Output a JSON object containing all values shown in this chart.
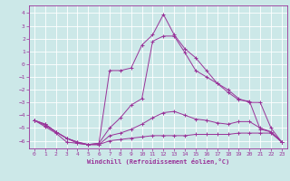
{
  "xlabel": "Windchill (Refroidissement éolien,°C)",
  "xlim": [
    -0.5,
    23.5
  ],
  "ylim": [
    -6.6,
    4.6
  ],
  "yticks": [
    4,
    3,
    2,
    1,
    0,
    -1,
    -2,
    -3,
    -4,
    -5,
    -6
  ],
  "xticks": [
    0,
    1,
    2,
    3,
    4,
    5,
    6,
    7,
    8,
    9,
    10,
    11,
    12,
    13,
    14,
    15,
    16,
    17,
    18,
    19,
    20,
    21,
    22,
    23
  ],
  "bg_color": "#cce8e8",
  "grid_color": "#ffffff",
  "line_color": "#993399",
  "line1_x": [
    0,
    1,
    2,
    3,
    4,
    5,
    6,
    7,
    8,
    9,
    10,
    11,
    12,
    13,
    14,
    15,
    16,
    17,
    18,
    19,
    20,
    21,
    22,
    23
  ],
  "line1_y": [
    -4.4,
    -4.9,
    -5.4,
    -6.1,
    -6.2,
    -6.3,
    -6.3,
    -6.0,
    -5.9,
    -5.8,
    -5.7,
    -5.6,
    -5.6,
    -5.6,
    -5.6,
    -5.5,
    -5.5,
    -5.5,
    -5.5,
    -5.4,
    -5.4,
    -5.4,
    -5.4,
    -6.1
  ],
  "line2_x": [
    0,
    1,
    2,
    3,
    4,
    5,
    6,
    7,
    8,
    9,
    10,
    11,
    12,
    13,
    14,
    15,
    16,
    17,
    18,
    19,
    20,
    21,
    22,
    23
  ],
  "line2_y": [
    -4.4,
    -4.8,
    -5.3,
    -5.8,
    -6.2,
    -6.3,
    -6.3,
    -5.6,
    -5.4,
    -5.1,
    -4.7,
    -4.2,
    -3.8,
    -3.7,
    -4.0,
    -4.3,
    -4.4,
    -4.6,
    -4.7,
    -4.5,
    -4.5,
    -5.0,
    -5.3,
    -6.1
  ],
  "line3_x": [
    0,
    1,
    2,
    3,
    4,
    5,
    6,
    7,
    8,
    9,
    10,
    11,
    12,
    13,
    14,
    15,
    16,
    17,
    18,
    19,
    20,
    21,
    22,
    23
  ],
  "line3_y": [
    -4.4,
    -4.7,
    -5.3,
    -5.8,
    -6.1,
    -6.3,
    -6.2,
    -5.0,
    -4.2,
    -3.2,
    -2.7,
    1.8,
    2.2,
    2.2,
    0.9,
    -0.5,
    -1.0,
    -1.5,
    -2.0,
    -2.7,
    -3.0,
    -3.0,
    -5.0,
    -6.1
  ],
  "line4_x": [
    0,
    1,
    2,
    3,
    4,
    5,
    6,
    7,
    8,
    9,
    10,
    11,
    12,
    13,
    14,
    15,
    16,
    17,
    18,
    19,
    20,
    21,
    22,
    23
  ],
  "line4_y": [
    -4.4,
    -4.7,
    -5.3,
    -5.8,
    -6.1,
    -6.3,
    -6.2,
    -0.5,
    -0.5,
    -0.3,
    1.5,
    2.3,
    3.9,
    2.3,
    1.2,
    0.5,
    -0.5,
    -1.5,
    -2.2,
    -2.8,
    -2.9,
    -5.1,
    -5.3,
    -6.1
  ]
}
